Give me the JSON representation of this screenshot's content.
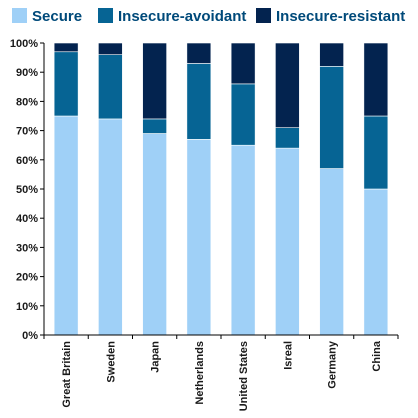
{
  "chart_data": {
    "type": "bar",
    "stacked": true,
    "percent_stacked": true,
    "title": "",
    "xlabel": "",
    "ylabel": "",
    "ylim": [
      0,
      100
    ],
    "y_tick_labels": [
      "0%",
      "10%",
      "20%",
      "30%",
      "40%",
      "50%",
      "60%",
      "70%",
      "80%",
      "90%",
      "100%"
    ],
    "y_ticks": [
      0,
      10,
      20,
      30,
      40,
      50,
      60,
      70,
      80,
      90,
      100
    ],
    "grid": false,
    "legend_position": "top",
    "categories": [
      "Great Britain",
      "Sweden",
      "Japan",
      "Netherlands",
      "United States",
      "Isreal",
      "Germany",
      "China"
    ],
    "series": [
      {
        "name": "Secure",
        "color": "#9fd0f7",
        "values": [
          75,
          74,
          69,
          67,
          65,
          64,
          57,
          50
        ]
      },
      {
        "name": "Insecure-avoidant",
        "color": "#066494",
        "values": [
          22,
          22,
          5,
          26,
          21,
          7,
          35,
          25
        ]
      },
      {
        "name": "Insecure-resistant",
        "color": "#03234f",
        "values": [
          3,
          4,
          26,
          7,
          14,
          29,
          8,
          25
        ]
      }
    ]
  }
}
